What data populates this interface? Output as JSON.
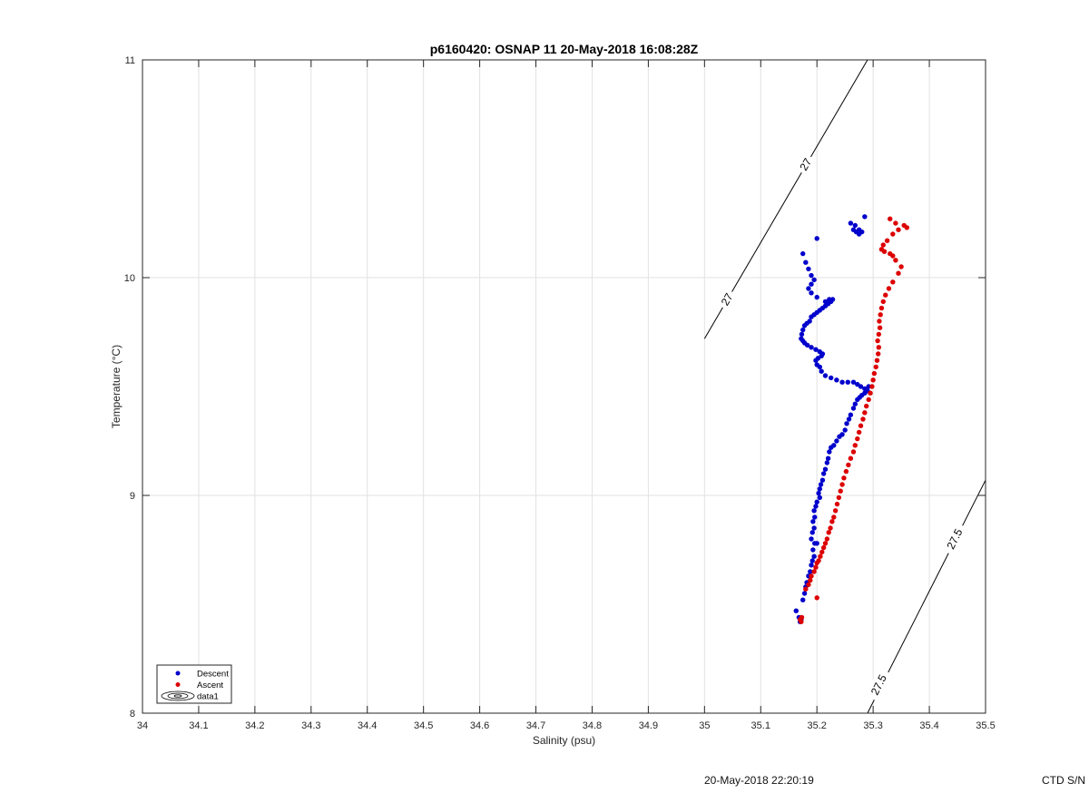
{
  "chart_data": {
    "type": "scatter",
    "title": "p6160420: OSNAP 11 20-May-2018 16:08:28Z",
    "xlabel": "Salinity (psu)",
    "ylabel": "Temperature (°C)",
    "xlim": [
      34,
      35.5
    ],
    "ylim": [
      8,
      11
    ],
    "xticks": [
      "34",
      "34.1",
      "34.2",
      "34.3",
      "34.4",
      "34.5",
      "34.6",
      "34.7",
      "34.8",
      "34.9",
      "35",
      "35.1",
      "35.2",
      "35.3",
      "35.4",
      "35.5"
    ],
    "yticks": [
      "8",
      "9",
      "10",
      "11"
    ],
    "grid": true,
    "legend_position": "bottom-left",
    "legend": [
      "Descent",
      "Ascent",
      "data1"
    ],
    "series": [
      {
        "name": "Descent",
        "color": "#0000cc",
        "marker": "dot",
        "points": [
          [
            35.17,
            8.42
          ],
          [
            35.172,
            8.43
          ],
          [
            35.168,
            8.44
          ],
          [
            35.163,
            8.47
          ],
          [
            35.175,
            8.52
          ],
          [
            35.178,
            8.55
          ],
          [
            35.18,
            8.58
          ],
          [
            35.182,
            8.6
          ],
          [
            35.185,
            8.63
          ],
          [
            35.188,
            8.65
          ],
          [
            35.19,
            8.68
          ],
          [
            35.192,
            8.7
          ],
          [
            35.195,
            8.72
          ],
          [
            35.193,
            8.75
          ],
          [
            35.196,
            8.78
          ],
          [
            35.2,
            8.78
          ],
          [
            35.19,
            8.8
          ],
          [
            35.192,
            8.83
          ],
          [
            35.195,
            8.85
          ],
          [
            35.193,
            8.88
          ],
          [
            35.196,
            8.9
          ],
          [
            35.195,
            8.93
          ],
          [
            35.198,
            8.95
          ],
          [
            35.2,
            8.97
          ],
          [
            35.205,
            8.99
          ],
          [
            35.203,
            9.01
          ],
          [
            35.205,
            9.03
          ],
          [
            35.207,
            9.05
          ],
          [
            35.21,
            9.07
          ],
          [
            35.212,
            9.1
          ],
          [
            35.215,
            9.12
          ],
          [
            35.218,
            9.15
          ],
          [
            35.22,
            9.17
          ],
          [
            35.222,
            9.2
          ],
          [
            35.225,
            9.22
          ],
          [
            35.23,
            9.23
          ],
          [
            35.235,
            9.25
          ],
          [
            35.24,
            9.27
          ],
          [
            35.245,
            9.28
          ],
          [
            35.25,
            9.3
          ],
          [
            35.253,
            9.33
          ],
          [
            35.257,
            9.35
          ],
          [
            35.26,
            9.37
          ],
          [
            35.265,
            9.4
          ],
          [
            35.268,
            9.42
          ],
          [
            35.272,
            9.44
          ],
          [
            35.276,
            9.45
          ],
          [
            35.28,
            9.46
          ],
          [
            35.285,
            9.47
          ],
          [
            35.29,
            9.48
          ],
          [
            35.292,
            9.5
          ],
          [
            35.285,
            9.49
          ],
          [
            35.278,
            9.5
          ],
          [
            35.272,
            9.51
          ],
          [
            35.265,
            9.52
          ],
          [
            35.255,
            9.52
          ],
          [
            35.245,
            9.52
          ],
          [
            35.235,
            9.53
          ],
          [
            35.225,
            9.54
          ],
          [
            35.215,
            9.55
          ],
          [
            35.208,
            9.57
          ],
          [
            35.205,
            9.59
          ],
          [
            35.2,
            9.6
          ],
          [
            35.198,
            9.62
          ],
          [
            35.202,
            9.63
          ],
          [
            35.208,
            9.64
          ],
          [
            35.21,
            9.65
          ],
          [
            35.205,
            9.66
          ],
          [
            35.198,
            9.67
          ],
          [
            35.19,
            9.68
          ],
          [
            35.183,
            9.69
          ],
          [
            35.178,
            9.7
          ],
          [
            35.175,
            9.71
          ],
          [
            35.172,
            9.72
          ],
          [
            35.173,
            9.74
          ],
          [
            35.175,
            9.76
          ],
          [
            35.178,
            9.78
          ],
          [
            35.182,
            9.79
          ],
          [
            35.187,
            9.8
          ],
          [
            35.19,
            9.82
          ],
          [
            35.195,
            9.83
          ],
          [
            35.2,
            9.84
          ],
          [
            35.205,
            9.85
          ],
          [
            35.21,
            9.86
          ],
          [
            35.215,
            9.87
          ],
          [
            35.22,
            9.88
          ],
          [
            35.225,
            9.89
          ],
          [
            35.228,
            9.9
          ],
          [
            35.222,
            9.9
          ],
          [
            35.215,
            9.89
          ],
          [
            35.2,
            9.91
          ],
          [
            35.19,
            9.93
          ],
          [
            35.185,
            9.95
          ],
          [
            35.19,
            9.97
          ],
          [
            35.195,
            9.99
          ],
          [
            35.19,
            10.01
          ],
          [
            35.185,
            10.04
          ],
          [
            35.18,
            10.07
          ],
          [
            35.175,
            10.11
          ],
          [
            35.2,
            10.18
          ],
          [
            35.265,
            10.22
          ],
          [
            35.27,
            10.21
          ],
          [
            35.275,
            10.2
          ],
          [
            35.28,
            10.21
          ],
          [
            35.275,
            10.22
          ],
          [
            35.268,
            10.24
          ],
          [
            35.26,
            10.25
          ],
          [
            35.285,
            10.28
          ]
        ]
      },
      {
        "name": "Ascent",
        "color": "#dd0000",
        "marker": "dot",
        "points": [
          [
            35.172,
            8.42
          ],
          [
            35.17,
            8.43
          ],
          [
            35.173,
            8.44
          ],
          [
            35.2,
            8.53
          ],
          [
            35.18,
            8.57
          ],
          [
            35.185,
            8.59
          ],
          [
            35.188,
            8.61
          ],
          [
            35.19,
            8.63
          ],
          [
            35.195,
            8.65
          ],
          [
            35.198,
            8.67
          ],
          [
            35.2,
            8.69
          ],
          [
            35.203,
            8.7
          ],
          [
            35.206,
            8.72
          ],
          [
            35.209,
            8.74
          ],
          [
            35.212,
            8.76
          ],
          [
            35.215,
            8.78
          ],
          [
            35.218,
            8.8
          ],
          [
            35.221,
            8.83
          ],
          [
            35.224,
            8.85
          ],
          [
            35.227,
            8.88
          ],
          [
            35.23,
            8.9
          ],
          [
            35.233,
            8.93
          ],
          [
            35.236,
            8.96
          ],
          [
            35.239,
            8.99
          ],
          [
            35.242,
            9.02
          ],
          [
            35.245,
            9.05
          ],
          [
            35.248,
            9.08
          ],
          [
            35.252,
            9.11
          ],
          [
            35.256,
            9.14
          ],
          [
            35.26,
            9.17
          ],
          [
            35.265,
            9.2
          ],
          [
            35.268,
            9.23
          ],
          [
            35.272,
            9.26
          ],
          [
            35.275,
            9.29
          ],
          [
            35.278,
            9.32
          ],
          [
            35.282,
            9.35
          ],
          [
            35.285,
            9.38
          ],
          [
            35.288,
            9.41
          ],
          [
            35.292,
            9.44
          ],
          [
            35.295,
            9.47
          ],
          [
            35.298,
            9.5
          ],
          [
            35.3,
            9.53
          ],
          [
            35.302,
            9.56
          ],
          [
            35.305,
            9.59
          ],
          [
            35.307,
            9.62
          ],
          [
            35.309,
            9.65
          ],
          [
            35.31,
            9.68
          ],
          [
            35.308,
            9.71
          ],
          [
            35.31,
            9.74
          ],
          [
            35.312,
            9.77
          ],
          [
            35.311,
            9.8
          ],
          [
            35.313,
            9.83
          ],
          [
            35.315,
            9.86
          ],
          [
            35.318,
            9.89
          ],
          [
            35.322,
            9.92
          ],
          [
            35.328,
            9.95
          ],
          [
            35.335,
            9.98
          ],
          [
            35.345,
            10.02
          ],
          [
            35.35,
            10.05
          ],
          [
            35.34,
            10.08
          ],
          [
            35.335,
            10.1
          ],
          [
            35.33,
            10.11
          ],
          [
            35.32,
            10.12
          ],
          [
            35.315,
            10.13
          ],
          [
            35.318,
            10.15
          ],
          [
            35.325,
            10.17
          ],
          [
            35.335,
            10.2
          ],
          [
            35.345,
            10.22
          ],
          [
            35.36,
            10.23
          ],
          [
            35.355,
            10.24
          ],
          [
            35.34,
            10.25
          ],
          [
            35.33,
            10.27
          ]
        ]
      }
    ],
    "contours": [
      {
        "label": "27",
        "points": [
          [
            35.0,
            9.72
          ],
          [
            35.29,
            11.0
          ]
        ],
        "label_positions": [
          [
            35.04,
            9.9
          ],
          [
            35.18,
            10.52
          ]
        ]
      },
      {
        "label": "27.5",
        "points": [
          [
            35.29,
            8.0
          ],
          [
            35.5,
            9.07
          ]
        ],
        "label_positions": [
          [
            35.31,
            8.13
          ],
          [
            35.445,
            8.8
          ]
        ]
      }
    ]
  },
  "footer": {
    "date": "20-May-2018 22:20:19",
    "ctd": "CTD S/N"
  }
}
